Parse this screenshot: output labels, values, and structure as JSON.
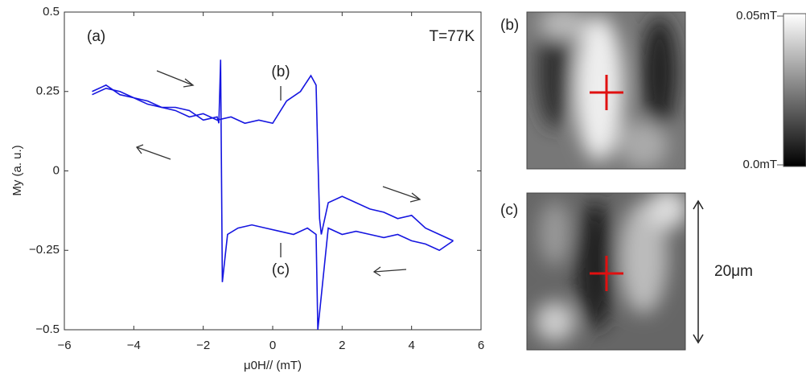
{
  "chart_data": {
    "type": "line",
    "xlabel": "μ0H// (mT)",
    "ylabel": "My (a. u.)",
    "annotations": [
      "(a)",
      "T=77K",
      "(b)",
      "(c)"
    ],
    "xlim": [
      -6,
      6
    ],
    "xticks": [
      {
        "value": -6,
        "label": "−6"
      },
      {
        "value": -4,
        "label": "−4"
      },
      {
        "value": -2,
        "label": "−2"
      },
      0,
      2,
      4,
      6
    ],
    "ylim": [
      -0.5,
      0.5
    ],
    "yticks": [
      {
        "value": -0.5,
        "label": "−0.5"
      },
      {
        "value": -0.25,
        "label": "−0.25"
      },
      0,
      0.25,
      0.5
    ],
    "series": [
      {
        "color": "#1515e0",
        "x": [
          -5.2,
          -4.8,
          -4.4,
          -4,
          -3.6,
          -3.2,
          -2.8,
          -2.4,
          -2,
          -1.6,
          -1.2,
          -0.8,
          -0.4,
          0,
          0.4,
          0.8,
          1.1,
          1.25,
          1.3,
          1.35,
          1.4,
          1.6,
          2,
          2.4,
          2.8,
          3.2,
          3.6,
          4,
          4.4,
          4.8,
          5.2
        ],
        "values": [
          0.25,
          0.27,
          0.24,
          0.23,
          0.21,
          0.2,
          0.19,
          0.17,
          0.18,
          0.16,
          0.17,
          0.15,
          0.16,
          0.15,
          0.22,
          0.25,
          0.3,
          0.27,
          0.05,
          -0.15,
          -0.2,
          -0.1,
          -0.08,
          -0.1,
          -0.12,
          -0.13,
          -0.15,
          -0.14,
          -0.18,
          -0.2,
          -0.22
        ]
      },
      {
        "color": "#1515e0",
        "x": [
          5.2,
          4.8,
          4.4,
          4,
          3.6,
          3.2,
          2.8,
          2.4,
          2,
          1.6,
          1.3,
          1.25,
          1,
          0.6,
          0.2,
          -0.2,
          -0.6,
          -1,
          -1.3,
          -1.45,
          -1.5,
          -1.55,
          -1.6,
          -2,
          -2.4,
          -2.8,
          -3.2,
          -3.6,
          -4,
          -4.4,
          -4.8,
          -5.2
        ],
        "values": [
          -0.22,
          -0.25,
          -0.23,
          -0.22,
          -0.2,
          -0.21,
          -0.2,
          -0.19,
          -0.2,
          -0.18,
          -0.5,
          -0.2,
          -0.18,
          -0.2,
          -0.19,
          -0.18,
          -0.17,
          -0.18,
          -0.2,
          -0.35,
          0.35,
          0.15,
          0.17,
          0.16,
          0.19,
          0.2,
          0.2,
          0.22,
          0.23,
          0.25,
          0.26,
          0.24
        ]
      }
    ]
  },
  "images": {
    "labels": [
      "(b)",
      "(c)"
    ],
    "colorbar": {
      "max_label": "0.05mT",
      "min_label": "0.0mT"
    },
    "scale_bar": "20μm"
  }
}
